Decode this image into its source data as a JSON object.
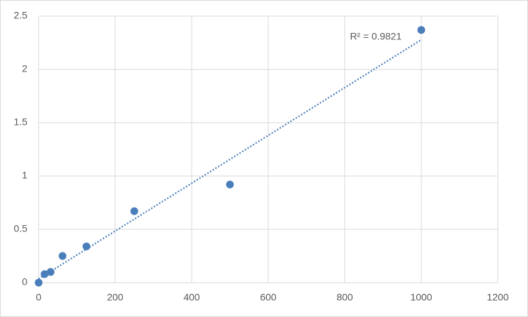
{
  "chart_data": {
    "type": "scatter",
    "x": [
      0,
      15.6,
      31.25,
      62.5,
      125,
      250,
      500,
      1000
    ],
    "series": [
      {
        "color": "#4a7ebb",
        "values": [
          0,
          0.08,
          0.1,
          0.25,
          0.34,
          0.67,
          0.92,
          2.37
        ]
      }
    ],
    "trendline": "linear",
    "annotations": [
      "R² = 0.9821"
    ],
    "xlim": [
      0,
      1200
    ],
    "xticks": [
      0,
      200,
      400,
      600,
      800,
      1000,
      1200
    ],
    "ylim": [
      0,
      2.5
    ],
    "yticks": [
      0,
      0.5,
      1,
      1.5,
      2,
      2.5
    ],
    "grid": true
  }
}
